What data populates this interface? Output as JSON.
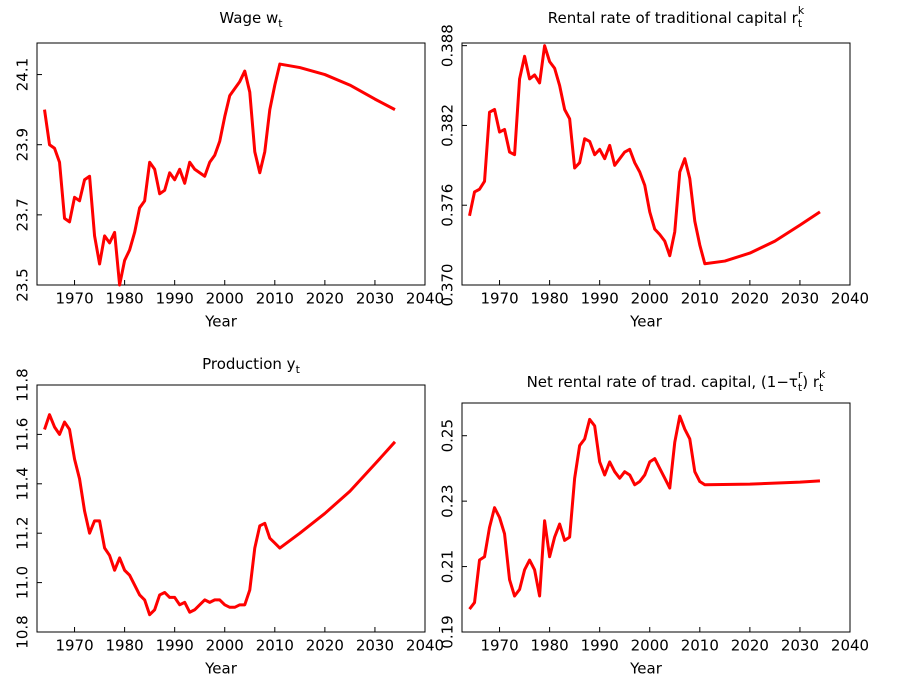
{
  "chart_data": [
    {
      "type": "line",
      "title": [
        {
          "text": "Wage w"
        },
        {
          "text": "t",
          "shift": "sub"
        }
      ],
      "xlabel": "Year",
      "x": [
        1964,
        1965,
        1966,
        1967,
        1968,
        1969,
        1970,
        1971,
        1972,
        1973,
        1974,
        1975,
        1976,
        1977,
        1978,
        1979,
        1980,
        1981,
        1982,
        1983,
        1984,
        1985,
        1986,
        1987,
        1988,
        1989,
        1990,
        1991,
        1992,
        1993,
        1994,
        1995,
        1996,
        1997,
        1998,
        1999,
        2000,
        2001,
        2002,
        2003,
        2004,
        2005,
        2006,
        2007,
        2008,
        2009,
        2010,
        2011,
        2015,
        2020,
        2025,
        2030,
        2034
      ],
      "values": [
        24.0,
        23.9,
        23.89,
        23.85,
        23.69,
        23.68,
        23.75,
        23.74,
        23.8,
        23.81,
        23.64,
        23.56,
        23.64,
        23.62,
        23.65,
        23.5,
        23.57,
        23.6,
        23.65,
        23.72,
        23.74,
        23.85,
        23.83,
        23.76,
        23.77,
        23.82,
        23.8,
        23.83,
        23.79,
        23.85,
        23.83,
        23.82,
        23.81,
        23.85,
        23.87,
        23.91,
        23.98,
        24.04,
        24.06,
        24.08,
        24.11,
        24.05,
        23.88,
        23.82,
        23.88,
        24.0,
        24.07,
        24.13,
        24.12,
        24.1,
        24.07,
        24.03,
        24.0
      ],
      "color": "#ff0000",
      "xlim": [
        1962.5,
        2040
      ],
      "xticks": [
        1970,
        1980,
        1990,
        2000,
        2010,
        2020,
        2030,
        2040
      ],
      "ylim": [
        23.5,
        24.19
      ],
      "yticks": [
        23.5,
        23.7,
        23.9,
        24.1
      ]
    },
    {
      "type": "line",
      "title": [
        {
          "text": "Rental rate of traditional capital r"
        },
        {
          "text": "k",
          "shift": "sup"
        },
        {
          "text": "t",
          "shift": "sub"
        }
      ],
      "xlabel": "Year",
      "x": [
        1964,
        1965,
        1966,
        1967,
        1968,
        1969,
        1970,
        1971,
        1972,
        1973,
        1974,
        1975,
        1976,
        1977,
        1978,
        1979,
        1980,
        1981,
        1982,
        1983,
        1984,
        1985,
        1986,
        1987,
        1988,
        1989,
        1990,
        1991,
        1992,
        1993,
        1994,
        1995,
        1996,
        1997,
        1998,
        1999,
        2000,
        2001,
        2002,
        2003,
        2004,
        2005,
        2006,
        2007,
        2008,
        2009,
        2010,
        2011,
        2015,
        2020,
        2025,
        2030,
        2034
      ],
      "values": [
        0.3752,
        0.377,
        0.3772,
        0.3778,
        0.383,
        0.3832,
        0.3815,
        0.3817,
        0.38,
        0.3798,
        0.3855,
        0.3872,
        0.3855,
        0.3858,
        0.3852,
        0.388,
        0.3868,
        0.3863,
        0.385,
        0.3832,
        0.3825,
        0.3788,
        0.3792,
        0.381,
        0.3808,
        0.3798,
        0.3802,
        0.3795,
        0.3805,
        0.379,
        0.3795,
        0.38,
        0.3802,
        0.3792,
        0.3785,
        0.3775,
        0.3755,
        0.3742,
        0.3738,
        0.3733,
        0.3722,
        0.374,
        0.3785,
        0.3795,
        0.378,
        0.3748,
        0.373,
        0.3716,
        0.3718,
        0.3724,
        0.3733,
        0.3745,
        0.3755
      ],
      "color": "#ff0000",
      "xlim": [
        1962.5,
        2040
      ],
      "xticks": [
        1970,
        1980,
        1990,
        2000,
        2010,
        2020,
        2030,
        2040
      ],
      "ylim": [
        0.37,
        0.3882
      ],
      "yticks": [
        {
          "value": 0.37,
          "label": "0.370"
        },
        {
          "value": 0.376,
          "label": "0.376"
        },
        {
          "value": 0.382,
          "label": "0.382"
        },
        {
          "value": 0.388,
          "label": "0.388"
        }
      ]
    },
    {
      "type": "line",
      "title": [
        {
          "text": "Production y"
        },
        {
          "text": "t",
          "shift": "sub"
        }
      ],
      "xlabel": "Year",
      "x": [
        1964,
        1965,
        1966,
        1967,
        1968,
        1969,
        1970,
        1971,
        1972,
        1973,
        1974,
        1975,
        1976,
        1977,
        1978,
        1979,
        1980,
        1981,
        1982,
        1983,
        1984,
        1985,
        1986,
        1987,
        1988,
        1989,
        1990,
        1991,
        1992,
        1993,
        1994,
        1995,
        1996,
        1997,
        1998,
        1999,
        2000,
        2001,
        2002,
        2003,
        2004,
        2005,
        2006,
        2007,
        2008,
        2009,
        2010,
        2011,
        2015,
        2020,
        2025,
        2030,
        2034
      ],
      "values": [
        11.62,
        11.68,
        11.63,
        11.6,
        11.65,
        11.62,
        11.5,
        11.42,
        11.29,
        11.2,
        11.25,
        11.25,
        11.14,
        11.11,
        11.05,
        11.1,
        11.05,
        11.03,
        10.99,
        10.95,
        10.93,
        10.87,
        10.89,
        10.95,
        10.96,
        10.94,
        10.94,
        10.91,
        10.92,
        10.88,
        10.89,
        10.91,
        10.93,
        10.92,
        10.93,
        10.93,
        10.91,
        10.9,
        10.9,
        10.91,
        10.91,
        10.97,
        11.14,
        11.23,
        11.24,
        11.18,
        11.16,
        11.14,
        11.2,
        11.28,
        11.37,
        11.48,
        11.57
      ],
      "color": "#ff0000",
      "xlim": [
        1962.5,
        2040
      ],
      "xticks": [
        1970,
        1980,
        1990,
        2000,
        2010,
        2020,
        2030,
        2040
      ],
      "ylim": [
        10.8,
        11.8
      ],
      "yticks": [
        10.8,
        {
          "value": 11.0,
          "label": "11.0"
        },
        11.2,
        11.4,
        11.6,
        11.8
      ]
    },
    {
      "type": "line",
      "title": [
        {
          "text": "Net rental rate of trad. capital, (1−τ"
        },
        {
          "text": "r",
          "shift": "sup"
        },
        {
          "text": "t",
          "shift": "sub"
        },
        {
          "text": ") r"
        },
        {
          "text": "k",
          "shift": "sup"
        },
        {
          "text": "t",
          "shift": "sub"
        }
      ],
      "xlabel": "Year",
      "x": [
        1964,
        1965,
        1966,
        1967,
        1968,
        1969,
        1970,
        1971,
        1972,
        1973,
        1974,
        1975,
        1976,
        1977,
        1978,
        1979,
        1980,
        1981,
        1982,
        1983,
        1984,
        1985,
        1986,
        1987,
        1988,
        1989,
        1990,
        1991,
        1992,
        1993,
        1994,
        1995,
        1996,
        1997,
        1998,
        1999,
        2000,
        2001,
        2002,
        2003,
        2004,
        2005,
        2006,
        2007,
        2008,
        2009,
        2010,
        2011,
        2020,
        2030,
        2034
      ],
      "values": [
        0.197,
        0.199,
        0.212,
        0.213,
        0.222,
        0.228,
        0.225,
        0.22,
        0.206,
        0.201,
        0.203,
        0.209,
        0.212,
        0.209,
        0.201,
        0.224,
        0.213,
        0.219,
        0.223,
        0.218,
        0.219,
        0.237,
        0.247,
        0.249,
        0.255,
        0.253,
        0.242,
        0.238,
        0.242,
        0.239,
        0.237,
        0.239,
        0.238,
        0.235,
        0.236,
        0.238,
        0.242,
        0.243,
        0.24,
        0.237,
        0.234,
        0.248,
        0.256,
        0.252,
        0.249,
        0.239,
        0.236,
        0.235,
        0.2352,
        0.2358,
        0.2362
      ],
      "color": "#ff0000",
      "xlim": [
        1962.5,
        2040
      ],
      "xticks": [
        1970,
        1980,
        1990,
        2000,
        2010,
        2020,
        2030,
        2040
      ],
      "ylim": [
        0.19,
        0.26
      ],
      "yticks": [
        0.19,
        0.21,
        0.23,
        0.25
      ]
    }
  ]
}
